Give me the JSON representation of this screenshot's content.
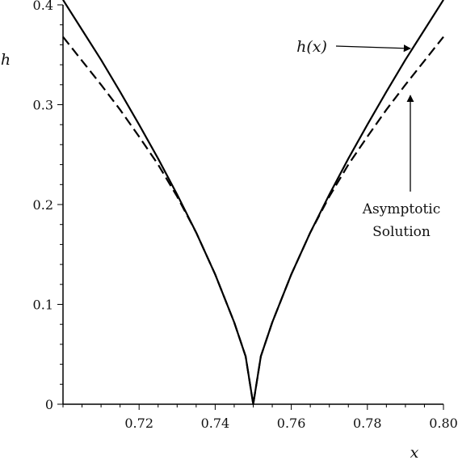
{
  "chart_data": {
    "type": "line",
    "title": "",
    "xlabel": "x",
    "ylabel": "h",
    "xlim": [
      0.7,
      0.8
    ],
    "ylim": [
      0,
      0.4
    ],
    "x_ticks": [
      0.72,
      0.74,
      0.76,
      0.78,
      0.8
    ],
    "x_tick_labels": [
      "0.72",
      "0.74",
      "0.76",
      "0.78",
      "0.80"
    ],
    "y_ticks": [
      0,
      0.1,
      0.2,
      0.3,
      0.4
    ],
    "y_tick_labels": [
      "0",
      "0.1",
      "0.2",
      "0.3",
      "0.4"
    ],
    "grid": false,
    "legend": "none",
    "series": [
      {
        "name": "h(x)",
        "style": "solid",
        "color": "#000000",
        "x": [
          0.7,
          0.705,
          0.71,
          0.715,
          0.72,
          0.725,
          0.73,
          0.735,
          0.74,
          0.745,
          0.748,
          0.75,
          0.752,
          0.755,
          0.76,
          0.765,
          0.77,
          0.775,
          0.78,
          0.785,
          0.79,
          0.795,
          0.8
        ],
        "y": [
          0.405,
          0.375,
          0.345,
          0.313,
          0.28,
          0.246,
          0.21,
          0.172,
          0.13,
          0.082,
          0.048,
          0.0,
          0.048,
          0.082,
          0.13,
          0.172,
          0.21,
          0.246,
          0.28,
          0.313,
          0.345,
          0.375,
          0.405
        ]
      },
      {
        "name": "Asymptotic Solution",
        "style": "dashed",
        "color": "#000000",
        "x": [
          0.7,
          0.705,
          0.71,
          0.715,
          0.72,
          0.725,
          0.73,
          0.735,
          0.74,
          0.745,
          0.748,
          0.75,
          0.752,
          0.755,
          0.76,
          0.765,
          0.77,
          0.775,
          0.78,
          0.785,
          0.79,
          0.795,
          0.8
        ],
        "y": [
          0.368,
          0.344,
          0.32,
          0.295,
          0.268,
          0.24,
          0.208,
          0.172,
          0.13,
          0.082,
          0.048,
          0.0,
          0.048,
          0.082,
          0.13,
          0.172,
          0.208,
          0.24,
          0.268,
          0.295,
          0.32,
          0.344,
          0.368
        ]
      }
    ],
    "annotations": [
      {
        "text": "h(x)",
        "target_series": "h(x)",
        "target_x": 0.792
      },
      {
        "text_lines": [
          "Asymptotic",
          "Solution"
        ],
        "target_series": "Asymptotic Solution",
        "target_x": 0.792
      }
    ]
  }
}
